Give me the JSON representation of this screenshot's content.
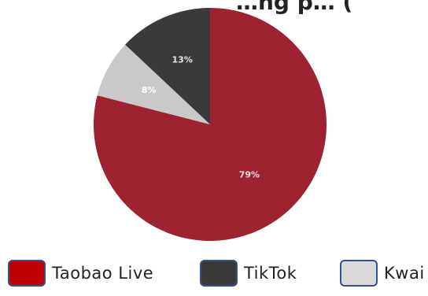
{
  "chart_data": {
    "type": "pie",
    "title": "…ng p… (",
    "start_angle_deg": 0,
    "direction": "clockwise",
    "slices": [
      {
        "name": "Taobao Live",
        "value": 79,
        "label": "79%",
        "color": "#9e2230",
        "label_color": "#f0dcdc"
      },
      {
        "name": "Kwai",
        "value": 8,
        "label": "8%",
        "color": "#c9c9c9",
        "label_color": "#ffffff"
      },
      {
        "name": "TikTok",
        "value": 13,
        "label": "13%",
        "color": "#3a3a3a",
        "label_color": "#e6e6e6"
      }
    ],
    "legend": {
      "placement": "bottom",
      "items": [
        {
          "label": "Taobao Live",
          "color": "#c00000"
        },
        {
          "label": "TikTok",
          "color": "#3a3a3a"
        },
        {
          "label": "Kwai",
          "color": "#d9d9d9"
        }
      ]
    }
  }
}
